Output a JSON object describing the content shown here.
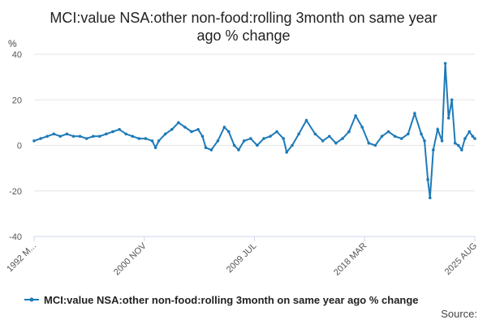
{
  "chart_data": {
    "type": "line",
    "title": "MCI:value NSA:other non-food:rolling 3month on same year ago % change",
    "title_lines": [
      "MCI:value NSA:other non-food:rolling 3month on same year",
      "ago % change"
    ],
    "ylabel": "%",
    "ylim": [
      -40,
      40
    ],
    "y_ticks": [
      40,
      20,
      0,
      -20,
      -40
    ],
    "x_ticks": [
      "1992 M...",
      "2000 NOV",
      "2009 JUL",
      "2018 MAR",
      "2025 AUG"
    ],
    "grid": true,
    "legend_position": "bottom",
    "series": [
      {
        "name": "MCI:value NSA:other non-food:rolling 3month on same year ago % change",
        "color": "#1e7ab8",
        "points": [
          [
            "1992-01",
            2
          ],
          [
            "1992-07",
            3
          ],
          [
            "1993-01",
            4
          ],
          [
            "1993-07",
            5
          ],
          [
            "1994-01",
            4
          ],
          [
            "1994-07",
            5
          ],
          [
            "1995-01",
            4
          ],
          [
            "1995-07",
            4
          ],
          [
            "1996-01",
            3
          ],
          [
            "1996-07",
            4
          ],
          [
            "1997-01",
            4
          ],
          [
            "1997-07",
            5
          ],
          [
            "1998-01",
            6
          ],
          [
            "1998-07",
            7
          ],
          [
            "1999-01",
            5
          ],
          [
            "1999-07",
            4
          ],
          [
            "2000-01",
            3
          ],
          [
            "2000-07",
            3
          ],
          [
            "2001-01",
            2
          ],
          [
            "2001-04",
            -1
          ],
          [
            "2001-07",
            2
          ],
          [
            "2002-01",
            5
          ],
          [
            "2002-07",
            7
          ],
          [
            "2003-01",
            10
          ],
          [
            "2003-07",
            8
          ],
          [
            "2004-01",
            6
          ],
          [
            "2004-07",
            7
          ],
          [
            "2004-11",
            4
          ],
          [
            "2005-02",
            -1
          ],
          [
            "2005-07",
            -2
          ],
          [
            "2006-01",
            2
          ],
          [
            "2006-07",
            8
          ],
          [
            "2006-11",
            6
          ],
          [
            "2007-04",
            0
          ],
          [
            "2007-08",
            -2
          ],
          [
            "2008-01",
            2
          ],
          [
            "2008-07",
            3
          ],
          [
            "2009-01",
            0
          ],
          [
            "2009-07",
            3
          ],
          [
            "2010-01",
            4
          ],
          [
            "2010-07",
            6
          ],
          [
            "2011-01",
            3
          ],
          [
            "2011-04",
            -3
          ],
          [
            "2011-09",
            0
          ],
          [
            "2012-03",
            5
          ],
          [
            "2012-10",
            11
          ],
          [
            "2013-06",
            5
          ],
          [
            "2014-01",
            2
          ],
          [
            "2014-07",
            4
          ],
          [
            "2015-01",
            1
          ],
          [
            "2015-07",
            3
          ],
          [
            "2016-01",
            6
          ],
          [
            "2016-07",
            13
          ],
          [
            "2017-01",
            8
          ],
          [
            "2017-07",
            1
          ],
          [
            "2018-01",
            0
          ],
          [
            "2018-07",
            4
          ],
          [
            "2019-01",
            6
          ],
          [
            "2019-07",
            4
          ],
          [
            "2020-01",
            3
          ],
          [
            "2020-07",
            5
          ],
          [
            "2021-01",
            14
          ],
          [
            "2021-07",
            5
          ],
          [
            "2021-10",
            2
          ],
          [
            "2022-01",
            -15
          ],
          [
            "2022-03",
            -23
          ],
          [
            "2022-06",
            -2
          ],
          [
            "2022-10",
            7
          ],
          [
            "2023-02",
            2
          ],
          [
            "2023-05",
            36
          ],
          [
            "2023-08",
            12
          ],
          [
            "2023-11",
            20
          ],
          [
            "2024-02",
            1
          ],
          [
            "2024-05",
            0
          ],
          [
            "2024-08",
            -2
          ],
          [
            "2024-11",
            3
          ],
          [
            "2025-03",
            6
          ],
          [
            "2025-06",
            4
          ],
          [
            "2025-08",
            3
          ]
        ]
      }
    ],
    "source_label": "Source:"
  }
}
